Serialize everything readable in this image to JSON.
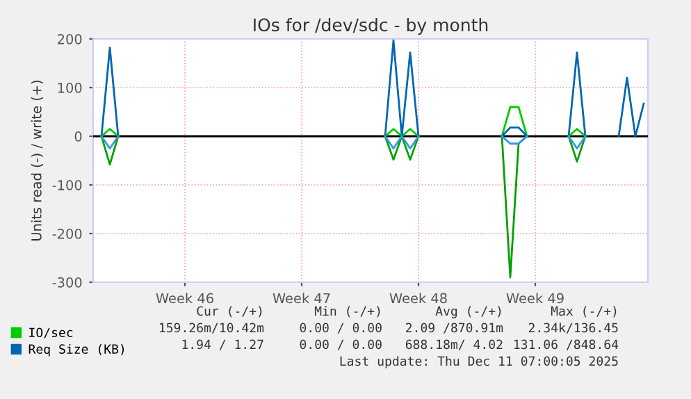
{
  "chart_data": {
    "type": "line",
    "title": "IOs for /dev/sdc - by month",
    "ylabel": "Units read (-) / write (+)",
    "categories": [
      null,
      null,
      null,
      null,
      null,
      null,
      null,
      null,
      null,
      null,
      null,
      "Week 46",
      null,
      null,
      null,
      null,
      null,
      null,
      null,
      null,
      null,
      null,
      null,
      null,
      null,
      "Week 47",
      null,
      null,
      null,
      null,
      null,
      null,
      null,
      null,
      null,
      null,
      null,
      null,
      null,
      "Week 48",
      null,
      null,
      null,
      null,
      null,
      null,
      null,
      null,
      null,
      null,
      null,
      null,
      null,
      "Week 49",
      null,
      null,
      null,
      null,
      null,
      null,
      null,
      null,
      null,
      null,
      null,
      null,
      null
    ],
    "series": [
      {
        "name": "IO/sec",
        "color": "#00cc00",
        "values": [
          null,
          0,
          15,
          0,
          null,
          null,
          null,
          null,
          null,
          null,
          null,
          null,
          null,
          null,
          null,
          null,
          null,
          null,
          null,
          null,
          null,
          null,
          null,
          null,
          null,
          null,
          null,
          null,
          null,
          null,
          null,
          null,
          null,
          null,
          null,
          0,
          15,
          0,
          15,
          0,
          null,
          null,
          null,
          null,
          null,
          null,
          null,
          null,
          null,
          0,
          60,
          60,
          0,
          null,
          null,
          null,
          null,
          0,
          15,
          0,
          null,
          null,
          null,
          null,
          null,
          null,
          null
        ]
      },
      {
        "name": "Req Size (KB)",
        "color": "#0066b3",
        "values": [
          null,
          0,
          182,
          0,
          null,
          null,
          null,
          null,
          null,
          null,
          null,
          null,
          null,
          null,
          null,
          null,
          null,
          null,
          null,
          null,
          null,
          null,
          null,
          null,
          null,
          null,
          null,
          null,
          null,
          null,
          null,
          null,
          null,
          null,
          null,
          0,
          197,
          0,
          172,
          0,
          null,
          null,
          null,
          null,
          null,
          null,
          null,
          null,
          null,
          0,
          18,
          18,
          0,
          null,
          null,
          null,
          null,
          0,
          172,
          0,
          null,
          null,
          null,
          0,
          120,
          0,
          67
        ]
      },
      {
        "color": "#00a000",
        "values": [
          null,
          0,
          -58,
          0,
          null,
          null,
          null,
          null,
          null,
          null,
          null,
          null,
          null,
          null,
          null,
          null,
          null,
          null,
          null,
          null,
          null,
          null,
          null,
          null,
          null,
          null,
          null,
          null,
          null,
          null,
          null,
          null,
          null,
          null,
          null,
          0,
          -48,
          0,
          -48,
          0,
          null,
          null,
          null,
          null,
          null,
          null,
          null,
          null,
          null,
          0,
          -290,
          -15,
          0,
          null,
          null,
          null,
          null,
          0,
          -52,
          0,
          null,
          null,
          null,
          null,
          null,
          null,
          null
        ]
      },
      {
        "color": "#3399e6",
        "values": [
          null,
          0,
          -25,
          0,
          null,
          null,
          null,
          null,
          null,
          null,
          null,
          null,
          null,
          null,
          null,
          null,
          null,
          null,
          null,
          null,
          null,
          null,
          null,
          null,
          null,
          null,
          null,
          null,
          null,
          null,
          null,
          null,
          null,
          null,
          null,
          0,
          -25,
          0,
          -25,
          0,
          null,
          null,
          null,
          null,
          null,
          null,
          null,
          null,
          null,
          0,
          -15,
          -15,
          0,
          null,
          null,
          null,
          null,
          0,
          -25,
          0,
          null,
          null,
          null,
          null,
          null,
          null,
          null
        ]
      }
    ],
    "ylim": [
      -300,
      200
    ],
    "yticks": [
      -300,
      -200,
      -100,
      0,
      100,
      200
    ],
    "ref_lines": [
      {
        "axis": "y",
        "value": 0,
        "color": "#000000"
      }
    ],
    "grid": true,
    "legend": "bottom",
    "annotations": [
      "Cur (-/+)",
      "Min (-/+)",
      "Avg (-/+)",
      "Max (-/+)",
      "159.26m/10.42m",
      "0.00 / 0.00",
      "2.09 /870.91m",
      "2.34k/136.45",
      "1.94 / 1.27",
      "0.00 / 0.00",
      "688.18m/ 4.02",
      "131.06 /848.64",
      "Last update: Thu Dec 11 07:00:05 2025"
    ]
  }
}
